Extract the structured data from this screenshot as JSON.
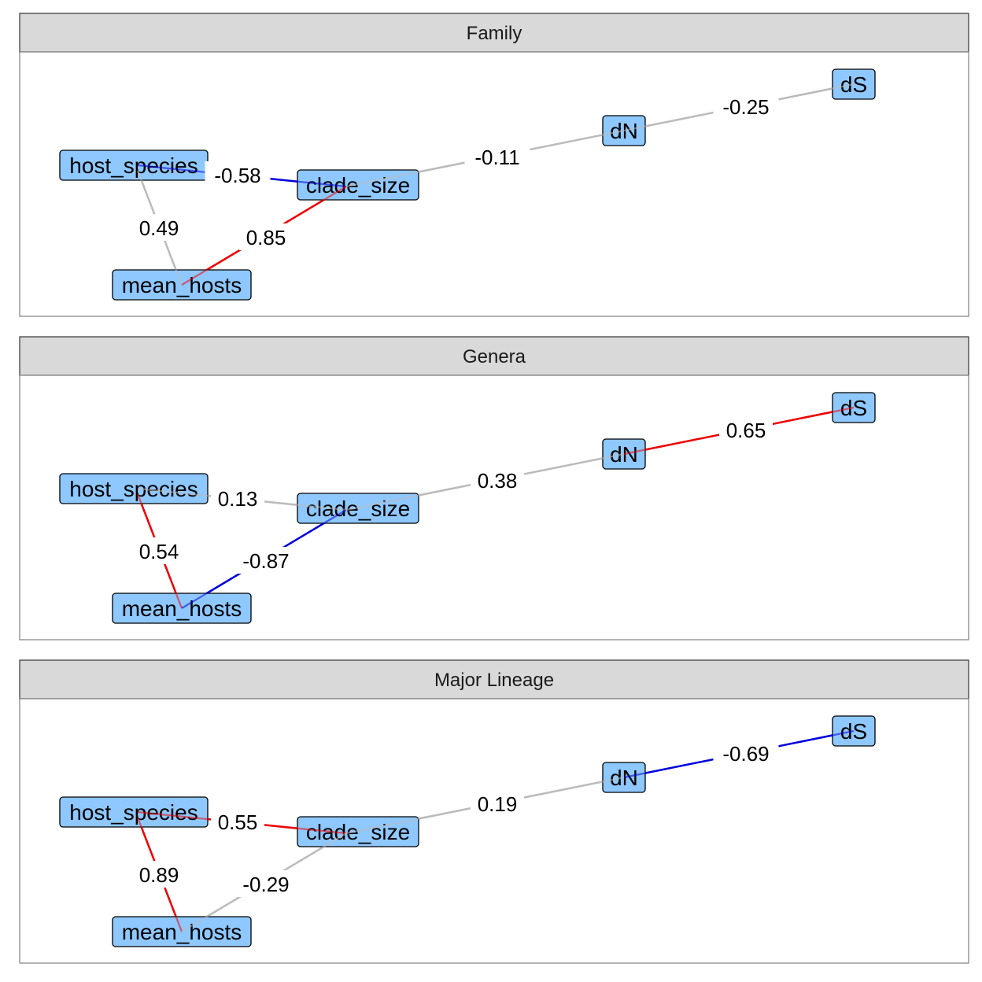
{
  "colors": {
    "node_fill": "#8ec8ff",
    "positive": "#ee0000",
    "negative": "#0000dd",
    "weak": "#bbbbbb",
    "strip_fill": "#d9d9d9",
    "panel_border": "#7f7f7f"
  },
  "nodes": [
    {
      "id": "host_species",
      "label": "host_species"
    },
    {
      "id": "clade_size",
      "label": "clade_size"
    },
    {
      "id": "mean_hosts",
      "label": "mean_hosts"
    },
    {
      "id": "dN",
      "label": "dN"
    },
    {
      "id": "dS",
      "label": "dS"
    }
  ],
  "panels": [
    {
      "title": "Family",
      "edges": [
        {
          "from": "host_species",
          "to": "clade_size",
          "value": -0.58,
          "label": "-0.58",
          "color": "negative"
        },
        {
          "from": "host_species",
          "to": "mean_hosts",
          "value": 0.49,
          "label": "0.49",
          "color": "weak"
        },
        {
          "from": "mean_hosts",
          "to": "clade_size",
          "value": 0.85,
          "label": "0.85",
          "color": "positive"
        },
        {
          "from": "clade_size",
          "to": "dN",
          "value": -0.11,
          "label": "-0.11",
          "color": "weak"
        },
        {
          "from": "dN",
          "to": "dS",
          "value": -0.25,
          "label": "-0.25",
          "color": "weak"
        }
      ]
    },
    {
      "title": "Genera",
      "edges": [
        {
          "from": "host_species",
          "to": "clade_size",
          "value": 0.13,
          "label": "0.13",
          "color": "weak"
        },
        {
          "from": "host_species",
          "to": "mean_hosts",
          "value": 0.54,
          "label": "0.54",
          "color": "positive"
        },
        {
          "from": "mean_hosts",
          "to": "clade_size",
          "value": -0.87,
          "label": "-0.87",
          "color": "negative"
        },
        {
          "from": "clade_size",
          "to": "dN",
          "value": 0.38,
          "label": "0.38",
          "color": "weak"
        },
        {
          "from": "dN",
          "to": "dS",
          "value": 0.65,
          "label": "0.65",
          "color": "positive"
        }
      ]
    },
    {
      "title": "Major Lineage",
      "edges": [
        {
          "from": "host_species",
          "to": "clade_size",
          "value": 0.55,
          "label": "0.55",
          "color": "positive"
        },
        {
          "from": "host_species",
          "to": "mean_hosts",
          "value": 0.89,
          "label": "0.89",
          "color": "positive"
        },
        {
          "from": "mean_hosts",
          "to": "clade_size",
          "value": -0.29,
          "label": "-0.29",
          "color": "weak"
        },
        {
          "from": "clade_size",
          "to": "dN",
          "value": 0.19,
          "label": "0.19",
          "color": "weak"
        },
        {
          "from": "dN",
          "to": "dS",
          "value": -0.69,
          "label": "-0.69",
          "color": "negative"
        }
      ]
    }
  ]
}
